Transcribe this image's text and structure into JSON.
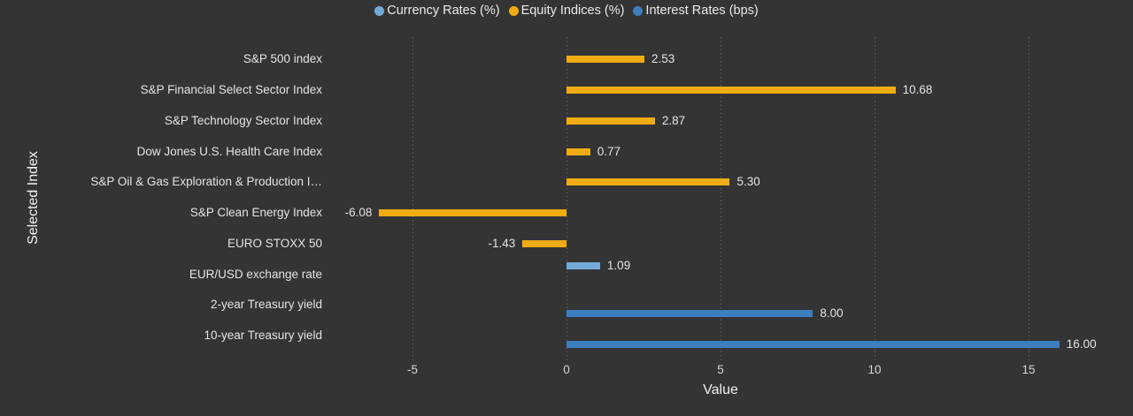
{
  "chart_data": {
    "type": "bar",
    "orientation": "horizontal",
    "title": "",
    "xlabel": "Value",
    "ylabel": "Selected Index",
    "xlim": [
      -7.5,
      17.5
    ],
    "xticks": [
      -5,
      0,
      5,
      10,
      15
    ],
    "xtick_labels": [
      "-5",
      "0",
      "5",
      "10",
      "15"
    ],
    "grid": "dotted-vertical",
    "legend_position": "top-center",
    "background_color": "#343434",
    "grid_color": "#5d5d5d",
    "text_color": "#e4e4e4",
    "categories": [
      "S&P 500 index",
      "S&P Financial Select Sector Index",
      "S&P Technology Sector Index",
      "Dow Jones U.S. Health Care Index",
      "S&P Oil & Gas Exploration & Production I…",
      "S&P Clean Energy Index",
      "EURO STOXX 50",
      "EUR/USD exchange rate",
      "2-year Treasury yield",
      "10-year Treasury yield"
    ],
    "series": [
      {
        "name": "Currency Rates (%)",
        "color": "#74AAD6",
        "values": [
          null,
          null,
          null,
          null,
          null,
          null,
          null,
          1.09,
          null,
          null
        ]
      },
      {
        "name": "Equity Indices (%)",
        "color": "#F2AC13",
        "values": [
          2.53,
          10.68,
          2.87,
          0.77,
          5.3,
          -6.08,
          -1.43,
          null,
          null,
          null
        ]
      },
      {
        "name": "Interest Rates (bps)",
        "color": "#3C7EBE",
        "values": [
          null,
          null,
          null,
          null,
          null,
          null,
          null,
          null,
          8.0,
          16.0
        ]
      }
    ],
    "value_labels": [
      "2.53",
      "10.68",
      "2.87",
      "0.77",
      "5.30",
      "-6.08",
      "-1.43",
      "1.09",
      "8.00",
      "16.00"
    ]
  }
}
